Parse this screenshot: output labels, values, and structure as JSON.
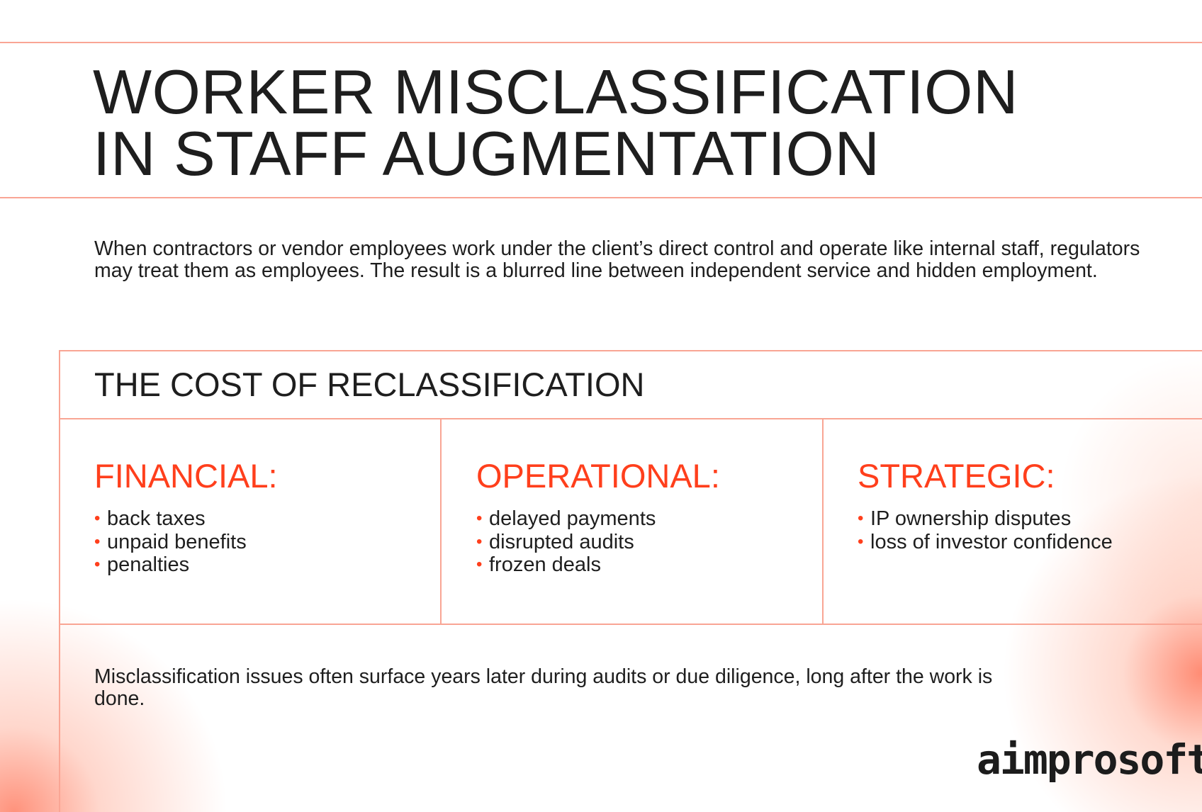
{
  "title_lines": [
    "WORKER MISCLASSIFICATION",
    "IN STAFF AUGMENTATION"
  ],
  "intro": "When contractors or vendor employees work under the client’s direct control and operate like internal staff, regulators may treat them as employees. The result is a blurred line between independent service and hidden employment.",
  "cost_heading": "THE COST OF RECLASSIFICATION",
  "columns": [
    {
      "heading": "FINANCIAL:",
      "items": [
        "back taxes",
        "unpaid benefits",
        "penalties"
      ]
    },
    {
      "heading": "OPERATIONAL:",
      "items": [
        "delayed payments",
        "disrupted audits",
        "frozen deals"
      ]
    },
    {
      "heading": "STRATEGIC:",
      "items": [
        "IP ownership disputes",
        "loss of investor confidence"
      ]
    }
  ],
  "note": "Misclassification issues often surface years later during audits or due diligence, long after the work is done.",
  "logo": "aimprosoft",
  "colors": {
    "accent": "#ff3f1c",
    "line": "#f9a594",
    "text": "#1e1e1e"
  }
}
